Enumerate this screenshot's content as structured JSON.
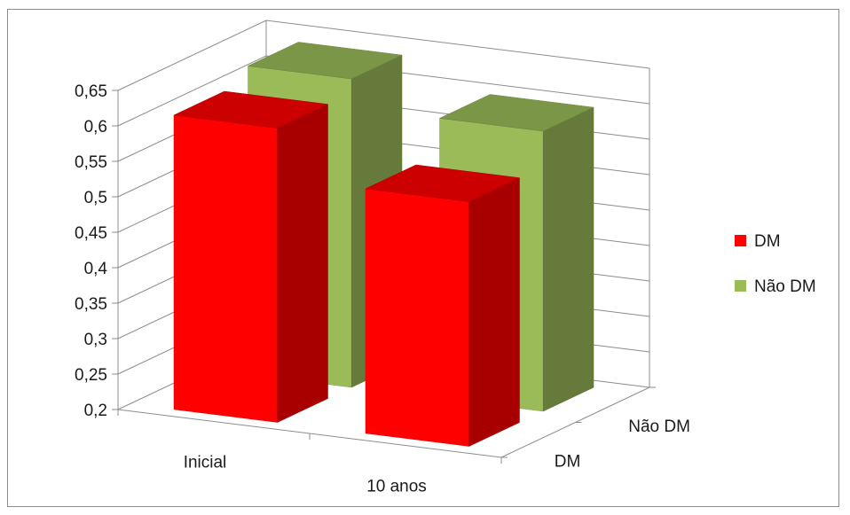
{
  "chart_data": {
    "type": "bar",
    "subtype": "3d-clustered-column",
    "title": "",
    "categories": [
      "Inicial",
      "10 anos"
    ],
    "depth_categories": [
      "DM",
      "Não DM"
    ],
    "series": [
      {
        "name": "DM",
        "color": "#ff0000",
        "values": [
          0.615,
          0.545
        ]
      },
      {
        "name": "Não DM",
        "color": "#9bbb59",
        "values": [
          0.635,
          0.595
        ]
      }
    ],
    "yticks": [
      "0,2",
      "0,25",
      "0,3",
      "0,35",
      "0,4",
      "0,45",
      "0,5",
      "0,55",
      "0,6",
      "0,65"
    ],
    "ylim": [
      0.2,
      0.65
    ],
    "grid": true,
    "legend": {
      "position": "right",
      "items": [
        "DM",
        "Não DM"
      ]
    }
  }
}
